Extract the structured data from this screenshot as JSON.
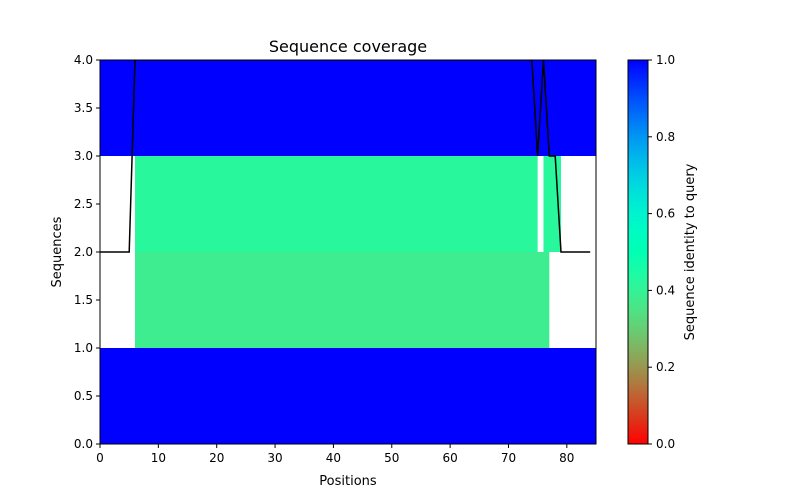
{
  "chart_data": {
    "type": "heatmap",
    "title": "Sequence coverage",
    "xlabel": "Positions",
    "ylabel": "Sequences",
    "xlim": [
      0,
      85
    ],
    "ylim": [
      0,
      4
    ],
    "x_ticks": [
      0,
      10,
      20,
      30,
      40,
      50,
      60,
      70,
      80
    ],
    "y_ticks": [
      "0.0",
      "0.5",
      "1.0",
      "1.5",
      "2.0",
      "2.5",
      "3.0",
      "3.5",
      "4.0"
    ],
    "grid": false,
    "rows": [
      {
        "y_range": [
          0,
          1
        ],
        "segments": [
          {
            "x_start": 0,
            "x_end": 85,
            "identity": 1.0
          }
        ]
      },
      {
        "y_range": [
          1,
          2
        ],
        "segments": [
          {
            "x_start": 6,
            "x_end": 77,
            "identity": 0.38
          }
        ]
      },
      {
        "y_range": [
          2,
          3
        ],
        "segments": [
          {
            "x_start": 6,
            "x_end": 75,
            "identity": 0.42
          },
          {
            "x_start": 76,
            "x_end": 79,
            "identity": 0.42
          }
        ]
      },
      {
        "y_range": [
          3,
          4
        ],
        "segments": [
          {
            "x_start": 0,
            "x_end": 85,
            "identity": 1.0
          }
        ]
      }
    ],
    "coverage_line": {
      "x": [
        0,
        1,
        2,
        3,
        4,
        5,
        6,
        7,
        8,
        9,
        10,
        20,
        30,
        40,
        50,
        60,
        70,
        74,
        75,
        76,
        77,
        78,
        79,
        80,
        81,
        82,
        83,
        84
      ],
      "y": [
        2,
        2,
        2,
        2,
        2,
        2,
        4,
        4,
        4,
        4,
        4,
        4,
        4,
        4,
        4,
        4,
        4,
        4,
        3,
        4,
        3,
        3,
        2,
        2,
        2,
        2,
        2,
        2
      ],
      "color": "#000000"
    },
    "colorbar": {
      "label": "Sequence identity to query",
      "colormap": "rainbow_r",
      "range": [
        0,
        1
      ],
      "ticks": [
        "0.0",
        "0.2",
        "0.4",
        "0.6",
        "0.8",
        "1.0"
      ]
    }
  }
}
